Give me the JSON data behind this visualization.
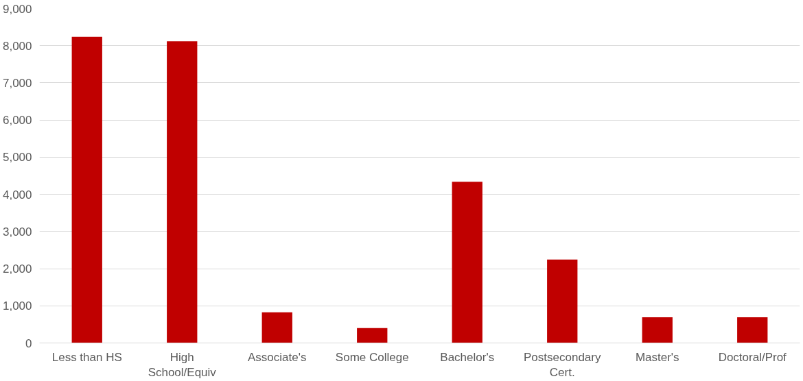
{
  "chart_data": {
    "type": "bar",
    "categories": [
      "Less than HS",
      "High School/Equiv",
      "Associate's",
      "Some College",
      "Bachelor's",
      "Postsecondary Cert.",
      "Master's",
      "Doctoral/Prof"
    ],
    "values": [
      8240,
      8120,
      825,
      400,
      4340,
      2245,
      690,
      690
    ],
    "color": "#c00000",
    "ylim": [
      0,
      9000
    ],
    "yticks": [
      {
        "value": 0,
        "label": "0"
      },
      {
        "value": 1000,
        "label": "1,000"
      },
      {
        "value": 2000,
        "label": "2,000"
      },
      {
        "value": 3000,
        "label": "3,000"
      },
      {
        "value": 4000,
        "label": "4,000"
      },
      {
        "value": 5000,
        "label": "5,000"
      },
      {
        "value": 6000,
        "label": "6,000"
      },
      {
        "value": 7000,
        "label": "7,000"
      },
      {
        "value": 8000,
        "label": "8,000"
      },
      {
        "value": 9000,
        "label": "9,000"
      }
    ],
    "grid": "y"
  }
}
